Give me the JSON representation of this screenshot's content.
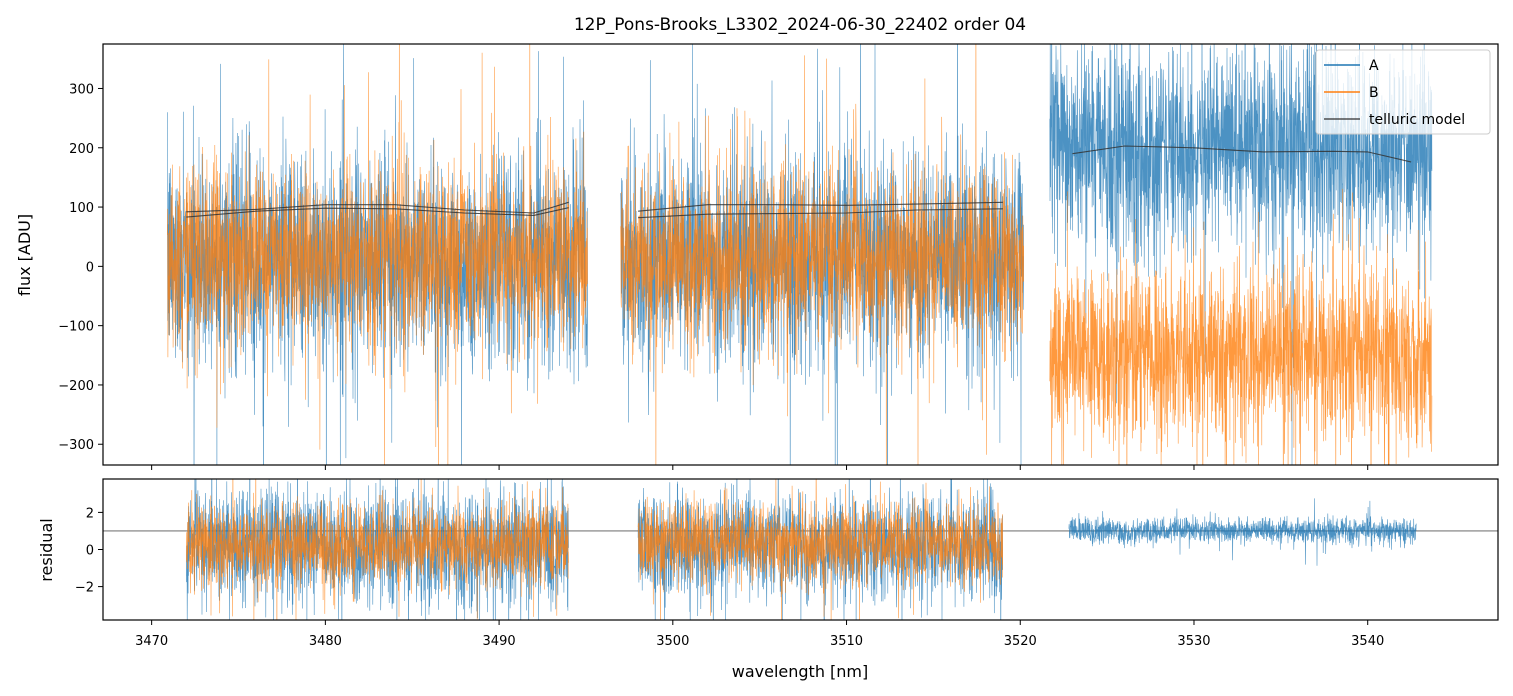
{
  "chart_data": [
    {
      "name": "flux-panel",
      "type": "line",
      "title": "12P_Pons-Brooks_L3302_2024-06-30_22402  order 04",
      "xlabel": "",
      "ylabel": "flux [ADU]",
      "xlim": [
        3467.2,
        3547.5
      ],
      "ylim": [
        -335,
        375
      ],
      "yticks": [
        -300,
        -200,
        -100,
        0,
        100,
        200,
        300
      ],
      "ytick_labels": [
        "−300",
        "−200",
        "−100",
        "0",
        "100",
        "200",
        "300"
      ],
      "grid": false,
      "legend": {
        "placement": "top-right",
        "entries": [
          {
            "label": "A",
            "color": "#1f77b4"
          },
          {
            "label": "B",
            "color": "#ff7f0e"
          },
          {
            "label": "telluric model",
            "color": "#333333"
          }
        ]
      },
      "series": [
        {
          "name": "A",
          "color": "#1f77b4",
          "segments": [
            {
              "x0": 3470.9,
              "x1": 3495.1,
              "mean": 10,
              "sd": 90,
              "clipped": true
            },
            {
              "x0": 3497.0,
              "x1": 3520.2,
              "mean": 10,
              "sd": 90,
              "clipped": true
            },
            {
              "x0": 3521.7,
              "x1": 3543.7,
              "mean": 195,
              "sd": 85,
              "clipped": true
            }
          ]
        },
        {
          "name": "B",
          "color": "#ff7f0e",
          "segments": [
            {
              "x0": 3470.9,
              "x1": 3495.1,
              "mean": 15,
              "sd": 75,
              "clipped": true
            },
            {
              "x0": 3497.0,
              "x1": 3520.2,
              "mean": 15,
              "sd": 75,
              "clipped": true
            },
            {
              "x0": 3521.7,
              "x1": 3543.7,
              "mean": -150,
              "sd": 75,
              "clipped": true
            }
          ]
        },
        {
          "name": "telluric model",
          "color": "#333333",
          "segments": [
            {
              "x": [
                3472.0,
                3476.0,
                3480.0,
                3484.0,
                3488.0,
                3492.0,
                3494.0
              ],
              "y": [
                92,
                96,
                104,
                104,
                95,
                90,
                108
              ]
            },
            {
              "x": [
                3472.0,
                3476.0,
                3480.0,
                3484.0,
                3488.0,
                3492.0,
                3494.0
              ],
              "y": [
                83,
                93,
                98,
                97,
                90,
                86,
                99
              ]
            },
            {
              "x": [
                3498.0,
                3502.0,
                3506.0,
                3510.0,
                3514.0,
                3519.0
              ],
              "y": [
                93,
                104,
                104,
                103,
                105,
                108
              ]
            },
            {
              "x": [
                3498.0,
                3502.0,
                3506.0,
                3510.0,
                3514.0,
                3519.0
              ],
              "y": [
                82,
                88,
                89,
                90,
                95,
                97
              ]
            },
            {
              "x": [
                3523.0,
                3526.0,
                3530.0,
                3534.0,
                3538.0,
                3540.0,
                3542.5
              ],
              "y": [
                190,
                203,
                200,
                193,
                194,
                193,
                176
              ]
            }
          ]
        }
      ]
    },
    {
      "name": "residual-panel",
      "type": "line",
      "title": "",
      "xlabel": "wavelength [nm]",
      "ylabel": "residual",
      "xlim": [
        3467.2,
        3547.5
      ],
      "ylim": [
        -3.8,
        3.8
      ],
      "xticks": [
        3470,
        3480,
        3490,
        3500,
        3510,
        3520,
        3530,
        3540
      ],
      "xtick_labels": [
        "3470",
        "3480",
        "3490",
        "3500",
        "3510",
        "3520",
        "3530",
        "3540"
      ],
      "yticks": [
        -2,
        0,
        2
      ],
      "ytick_labels": [
        "−2",
        "0",
        "2"
      ],
      "reference_line": 1,
      "grid": false,
      "series": [
        {
          "name": "A",
          "color": "#1f77b4",
          "segments": [
            {
              "x0": 3472.0,
              "x1": 3494.0,
              "mean": 0.2,
              "sd": 1.5,
              "clipped": true
            },
            {
              "x0": 3498.0,
              "x1": 3519.0,
              "mean": 0.2,
              "sd": 1.4,
              "clipped": true
            },
            {
              "x0": 3522.8,
              "x1": 3542.8,
              "mean": 1.0,
              "sd": 0.35,
              "clipped": false
            }
          ]
        },
        {
          "name": "B",
          "color": "#ff7f0e",
          "segments": [
            {
              "x0": 3472.0,
              "x1": 3494.0,
              "mean": 0.3,
              "sd": 1.1,
              "clipped": true
            },
            {
              "x0": 3498.0,
              "x1": 3519.0,
              "mean": 0.3,
              "sd": 1.1,
              "clipped": true
            }
          ]
        }
      ]
    }
  ]
}
